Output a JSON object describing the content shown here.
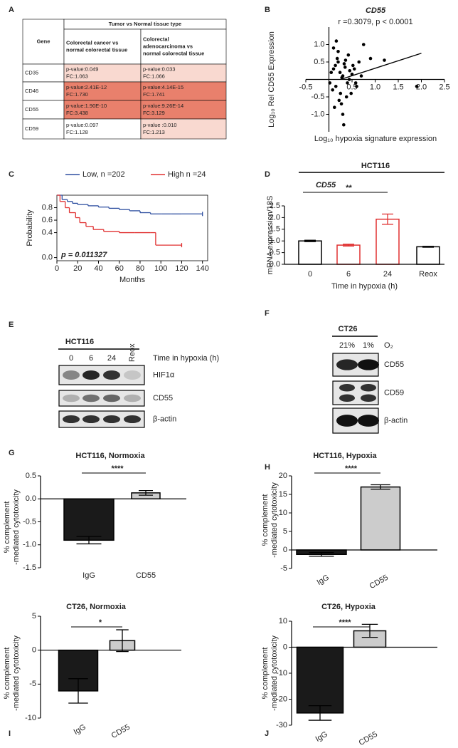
{
  "panels": [
    "A",
    "B",
    "C",
    "D",
    "E",
    "F",
    "G",
    "H",
    "I",
    "J"
  ],
  "table": {
    "header": "Tumor vs Normal tissue type",
    "columns": [
      [
        "Gene"
      ],
      [
        "Colorectal cancer vs",
        "normal colorectal tissue"
      ],
      [
        "Colorectal",
        "adenocarcinoma vs",
        "normal colorectal tissue"
      ]
    ],
    "rows": [
      [
        [
          "CD35"
        ],
        [
          "p-value:0.049",
          "FC:1.063"
        ],
        [
          "p-value:0.033",
          "FC:1.066"
        ]
      ],
      [
        [
          "CD46"
        ],
        [
          "p-value:2.41E-12",
          "FC:1.730"
        ],
        [
          "p-value:4.14E-15",
          "FC:1.741"
        ]
      ],
      [
        [
          "CD55"
        ],
        [
          "p-value:1.90E-10",
          "FC:3.438"
        ],
        [
          "p-value:9.26E-14",
          "FC:3.129"
        ]
      ],
      [
        [
          "CD59"
        ],
        [
          "p-value:0.097",
          "FC:1.128"
        ],
        [
          "p-value :0.010",
          "FC:1.213"
        ]
      ]
    ],
    "cell_colors": [
      [
        "#ffffff",
        "#f9d9d0",
        "#f9d9d0"
      ],
      [
        "#ffffff",
        "#e9806c",
        "#e9806c"
      ],
      [
        "#ffffff",
        "#e9806c",
        "#e9806c"
      ],
      [
        "#ffffff",
        "#ffffff",
        "#f9d9d0"
      ]
    ]
  },
  "chart_data": [
    {
      "type": "scatter",
      "title": "CD55",
      "subtitle": "r =0.3079, p < 0.0001",
      "xlabel": "Log₁₀ hypoxia signature expression",
      "ylabel": "Log₁₀ Rel CD55 Expression",
      "x": [
        0.1,
        0.2,
        0.15,
        0.3,
        0.25,
        0.05,
        0.35,
        0.4,
        0.18,
        0.22,
        0.28,
        0.12,
        0.33,
        0.45,
        0.5,
        0.08,
        0.38,
        0.42,
        0.55,
        0.6,
        0.3,
        0.2,
        0.1,
        0.27,
        0.48,
        0.65,
        0.7,
        0.02,
        0.16,
        0.36,
        0.52,
        0.9,
        1.2,
        0.75,
        0.58,
        0.44,
        0.24,
        0.14,
        1.9,
        0.32
      ],
      "values": [
        0.3,
        0.5,
        -0.2,
        0.1,
        -0.4,
        0.2,
        0.35,
        -0.1,
        0.6,
        -0.6,
        0.05,
        -0.8,
        0.45,
        0.25,
        0.15,
        -0.3,
        -0.5,
        0.7,
        0.3,
        -0.2,
        -1.0,
        0.8,
        0.9,
        -0.7,
        -0.4,
        0.5,
        0.1,
        -0.1,
        1.1,
        0.55,
        0.4,
        0.6,
        0.55,
        1.0,
        -0.1,
        0.0,
        0.2,
        0.4,
        -0.2,
        -1.3
      ],
      "color": "#000000",
      "fit_line": {
        "x": [
          0.3,
          2.0
        ],
        "values": [
          0.02,
          0.75
        ]
      },
      "xlim": [
        -0.5,
        2.5
      ],
      "ylim": [
        -1.5,
        1.5
      ],
      "xticks": [
        -0.5,
        0.5,
        {
          "value": 1,
          "label": "1.0"
        },
        1.5,
        {
          "value": 2,
          "label": "2.0"
        },
        2.5
      ],
      "yticks": [
        {
          "value": -1,
          "label": "-1.0"
        },
        -0.5,
        0.5,
        {
          "value": 1,
          "label": "1.0"
        }
      ]
    },
    {
      "type": "line",
      "step": true,
      "xlabel": "Months",
      "ylabel": "Probability",
      "annotation": "p = 0.011327",
      "series": [
        {
          "name": "Low, n =202",
          "color": "#2e4fa0",
          "x": [
            0,
            5,
            10,
            15,
            20,
            30,
            40,
            50,
            60,
            70,
            80,
            90,
            100,
            110,
            120,
            140
          ],
          "values": [
            1,
            0.93,
            0.9,
            0.87,
            0.85,
            0.83,
            0.81,
            0.79,
            0.77,
            0.75,
            0.72,
            0.7,
            0.7,
            0.7,
            0.7,
            0.7
          ]
        },
        {
          "name": "High n =24",
          "color": "#e03030",
          "x": [
            0,
            3,
            8,
            12,
            18,
            22,
            28,
            35,
            45,
            60,
            75,
            90,
            95,
            120
          ],
          "values": [
            1,
            0.9,
            0.8,
            0.72,
            0.64,
            0.56,
            0.5,
            0.45,
            0.42,
            0.4,
            0.4,
            0.4,
            0.2,
            0.2
          ]
        }
      ],
      "xlim": [
        0,
        145
      ],
      "ylim": [
        -0.05,
        1.0
      ],
      "xticks": [
        0,
        20,
        40,
        60,
        80,
        100,
        120,
        140
      ],
      "yticks": [
        {
          "value": 0,
          "label": "0.0"
        },
        0.4,
        0.6,
        0.8
      ]
    },
    {
      "type": "bar",
      "title": "HCT116",
      "annotation": "CD55",
      "significance": {
        "label": "**",
        "categories": [
          "0",
          "24"
        ]
      },
      "categories": [
        "0",
        "6",
        "24",
        "Reox"
      ],
      "values": [
        1.0,
        0.82,
        1.93,
        0.75
      ],
      "errors": [
        0.03,
        0.04,
        0.22,
        0.02
      ],
      "colors": [
        "#ffffff",
        "#ffffff",
        "#ffffff",
        "#ffffff"
      ],
      "edge_colors": [
        "#000000",
        "#e03030",
        "#e03030",
        "#000000"
      ],
      "xlabel": "Time in hypoxia (h)",
      "ylabel": [
        "mRNA expression/18S"
      ],
      "ylim": [
        0,
        2.5
      ],
      "yticks": [
        {
          "value": 0,
          "label": "0.0"
        },
        0.5,
        {
          "value": 1,
          "label": "1.0"
        },
        1.5,
        {
          "value": 2,
          "label": "2.0"
        },
        2.5
      ]
    },
    {
      "type": "bar",
      "title": "HCT116, Normoxia",
      "significance": {
        "label": "****",
        "categories": [
          "IgG",
          "CD55"
        ]
      },
      "categories": [
        "IgG",
        "CD55"
      ],
      "values": [
        -0.9,
        0.13
      ],
      "errors": [
        0.08,
        0.05
      ],
      "colors": [
        "#1a1a1a",
        "#cccccc"
      ],
      "edge_colors": [
        "#000000",
        "#000000"
      ],
      "ylabel": [
        "% complement",
        "-mediated cytotoxicity"
      ],
      "ylim": [
        -1.5,
        0.5
      ],
      "yticks": [
        -1.5,
        {
          "value": -1,
          "label": "-1.0"
        },
        -0.5,
        {
          "value": 0,
          "label": "0.0"
        },
        0.5
      ]
    },
    {
      "type": "bar",
      "title": "HCT116, Hypoxia",
      "significance": {
        "label": "****",
        "categories": [
          "IgG",
          "CD55"
        ]
      },
      "categories": [
        "IgG",
        "CD55"
      ],
      "values": [
        -1.2,
        17
      ],
      "errors": [
        0.5,
        0.6
      ],
      "colors": [
        "#1a1a1a",
        "#cccccc"
      ],
      "edge_colors": [
        "#000000",
        "#000000"
      ],
      "ylabel": [
        "% complement",
        "-mediated cytotoxicity"
      ],
      "ylim": [
        -5,
        20
      ],
      "yticks": [
        -5,
        0,
        5,
        10,
        15,
        20
      ]
    },
    {
      "type": "bar",
      "title": "CT26, Normoxia",
      "significance": {
        "label": "*",
        "categories": [
          "IgG",
          "CD55"
        ]
      },
      "categories": [
        "IgG",
        "CD55"
      ],
      "values": [
        -6,
        1.4
      ],
      "errors": [
        1.8,
        1.6
      ],
      "colors": [
        "#1a1a1a",
        "#cccccc"
      ],
      "edge_colors": [
        "#000000",
        "#000000"
      ],
      "ylabel": [
        "% complement",
        "-mediated cytotoxicity"
      ],
      "ylim": [
        -10,
        5
      ],
      "yticks": [
        -10,
        -5,
        0,
        5
      ]
    },
    {
      "type": "bar",
      "title": "CT26, Hypoxia",
      "significance": {
        "label": "****",
        "categories": [
          "IgG",
          "CD55"
        ]
      },
      "categories": [
        "IgG",
        "CD55"
      ],
      "values": [
        -25.3,
        6.3
      ],
      "errors": [
        2.8,
        2.5
      ],
      "colors": [
        "#1a1a1a",
        "#cccccc"
      ],
      "edge_colors": [
        "#000000",
        "#000000"
      ],
      "ylabel": [
        "% complement",
        "-mediated cytotoxicity"
      ],
      "ylim": [
        -30,
        10
      ],
      "yticks": [
        -30,
        -20,
        -10,
        0,
        10
      ]
    }
  ],
  "blots": [
    {
      "title": "HCT116",
      "lanes": [
        "0",
        "6",
        "24",
        "Reox"
      ],
      "lane_axis": "Time in hypoxia (h)",
      "bands": [
        "HIF1α",
        "CD55",
        "β-actin"
      ]
    },
    {
      "title": "CT26",
      "lanes": [
        "21%",
        "1%"
      ],
      "lane_axis": "O₂",
      "bands": [
        "CD55",
        "CD59",
        "β-actin"
      ]
    }
  ]
}
